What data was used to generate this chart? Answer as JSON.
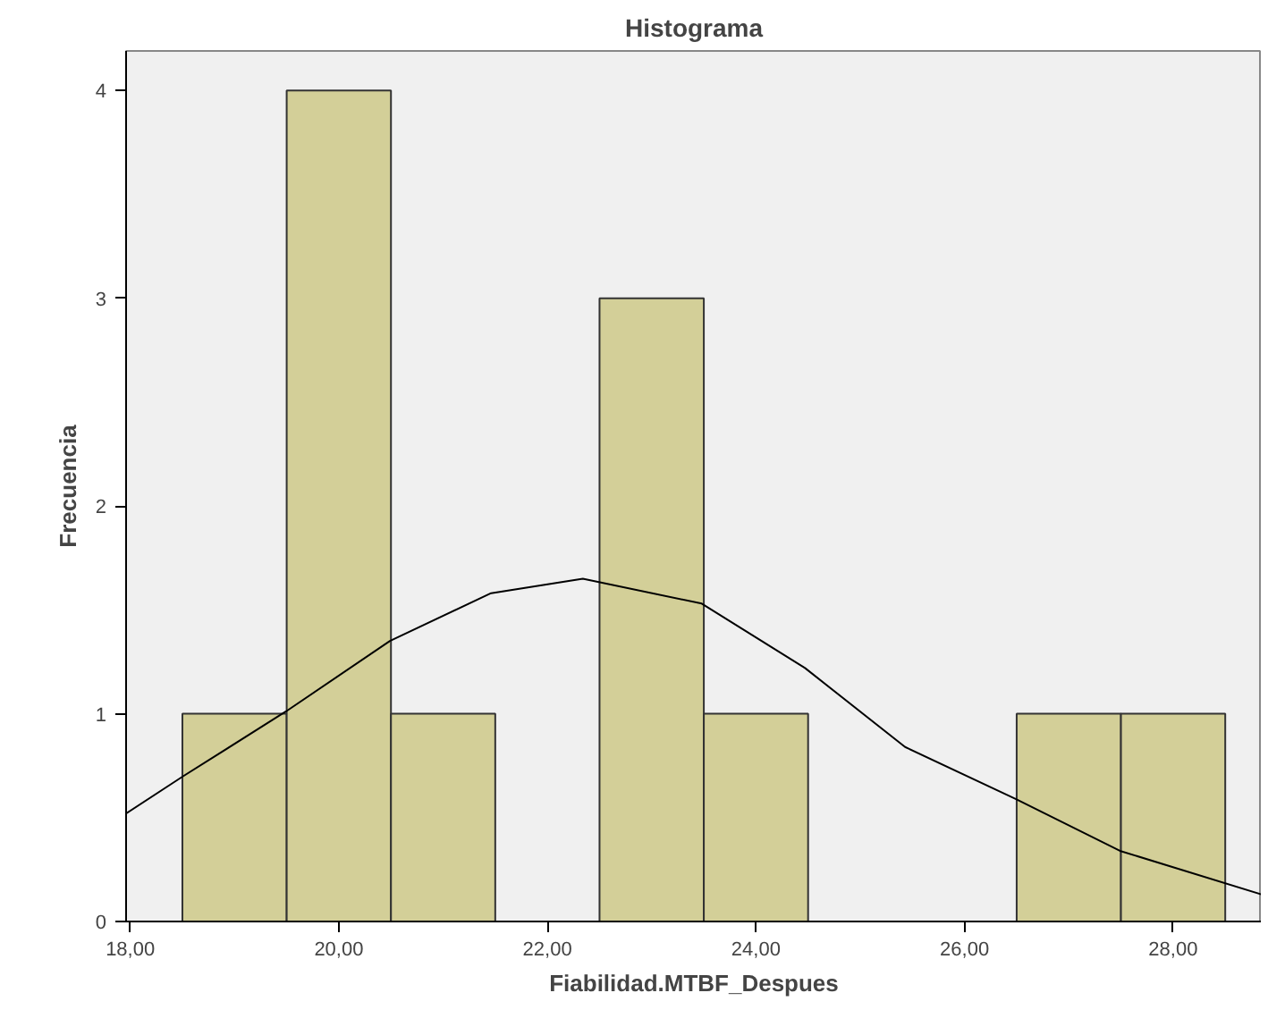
{
  "chart_data": {
    "type": "histogram",
    "title": "Histograma",
    "xlabel": "Fiabilidad.MTBF_Despues",
    "ylabel": "Frecuencia",
    "bins": [
      18.5,
      19.5,
      20.5,
      21.5,
      22.5,
      23.5,
      24.5,
      25.5,
      26.5,
      27.5,
      28.5
    ],
    "values": [
      1,
      4,
      1,
      0,
      3,
      1,
      0,
      0,
      1,
      1
    ],
    "color": "#d3cf98",
    "series": [
      {
        "type": "line",
        "color": "#000000",
        "x": [
          17.96,
          18.51,
          19.49,
          20.49,
          21.46,
          22.34,
          23.48,
          24.47,
          25.43,
          26.49,
          27.49,
          28.85
        ],
        "values": [
          0.52,
          0.7,
          1.01,
          1.35,
          1.58,
          1.65,
          1.53,
          1.22,
          0.84,
          0.59,
          0.34,
          0.13
        ]
      }
    ],
    "xlim": [
      17.96,
      28.85
    ],
    "ylim": [
      0,
      4.19
    ],
    "xticks": [
      {
        "value": 18,
        "label": "18,00"
      },
      {
        "value": 20,
        "label": "20,00"
      },
      {
        "value": 22,
        "label": "22,00"
      },
      {
        "value": 24,
        "label": "24,00"
      },
      {
        "value": 26,
        "label": "26,00"
      },
      {
        "value": 28,
        "label": "28,00"
      }
    ],
    "yticks": [
      0,
      1,
      2,
      3,
      4
    ],
    "grid": false
  }
}
